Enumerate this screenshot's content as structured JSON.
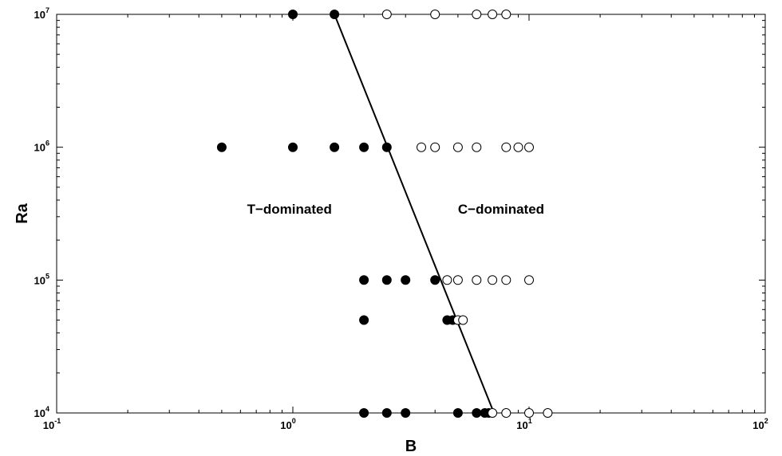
{
  "chart_data": {
    "type": "scatter",
    "xlabel": "B",
    "ylabel": "Ra",
    "xscale": "log",
    "yscale": "log",
    "xlim": [
      0.1,
      100
    ],
    "ylim": [
      10000,
      10000000
    ],
    "grid": false,
    "x_ticks": [
      {
        "base": "10",
        "exp": "-1"
      },
      {
        "base": "10",
        "exp": "0"
      },
      {
        "base": "10",
        "exp": "1"
      },
      {
        "base": "10",
        "exp": "2"
      }
    ],
    "y_ticks": [
      {
        "base": "10",
        "exp": "4"
      },
      {
        "base": "10",
        "exp": "5"
      },
      {
        "base": "10",
        "exp": "6"
      },
      {
        "base": "10",
        "exp": "7"
      }
    ],
    "annotations": [
      {
        "text": "T−dominated",
        "x": 0.64,
        "y": 316000
      },
      {
        "text": "C−dominated",
        "x": 5.0,
        "y": 316000
      }
    ],
    "series": [
      {
        "marker": "filled-circle",
        "color": "#000000",
        "points": [
          [
            1.0,
            10000000
          ],
          [
            1.5,
            10000000
          ],
          [
            0.5,
            1000000
          ],
          [
            1.0,
            1000000
          ],
          [
            1.5,
            1000000
          ],
          [
            2.0,
            1000000
          ],
          [
            2.5,
            1000000
          ],
          [
            2.0,
            100000
          ],
          [
            2.5,
            100000
          ],
          [
            3.0,
            100000
          ],
          [
            4.0,
            100000
          ],
          [
            2.0,
            50000
          ],
          [
            4.5,
            50000
          ],
          [
            4.75,
            50000
          ],
          [
            2.0,
            10000
          ],
          [
            2.5,
            10000
          ],
          [
            3.0,
            10000
          ],
          [
            5.0,
            10000
          ],
          [
            6.0,
            10000
          ],
          [
            6.5,
            10000
          ],
          [
            6.75,
            10000
          ]
        ]
      },
      {
        "marker": "open-circle",
        "color": "#000000",
        "points": [
          [
            2.5,
            10000000
          ],
          [
            4.0,
            10000000
          ],
          [
            6.0,
            10000000
          ],
          [
            7.0,
            10000000
          ],
          [
            8.0,
            10000000
          ],
          [
            3.5,
            1000000
          ],
          [
            4.0,
            1000000
          ],
          [
            5.0,
            1000000
          ],
          [
            6.0,
            1000000
          ],
          [
            8.0,
            1000000
          ],
          [
            9.0,
            1000000
          ],
          [
            10.0,
            1000000
          ],
          [
            4.5,
            100000
          ],
          [
            5.0,
            100000
          ],
          [
            6.0,
            100000
          ],
          [
            7.0,
            100000
          ],
          [
            8.0,
            100000
          ],
          [
            10.0,
            100000
          ],
          [
            5.0,
            50000
          ],
          [
            5.25,
            50000
          ],
          [
            7.0,
            10000
          ],
          [
            8.0,
            10000
          ],
          [
            10.0,
            10000
          ],
          [
            12.0,
            10000
          ]
        ]
      }
    ],
    "lines": [
      {
        "color": "#000000",
        "points": [
          [
            1.5,
            10000000
          ],
          [
            7.1,
            10000
          ]
        ]
      }
    ]
  }
}
